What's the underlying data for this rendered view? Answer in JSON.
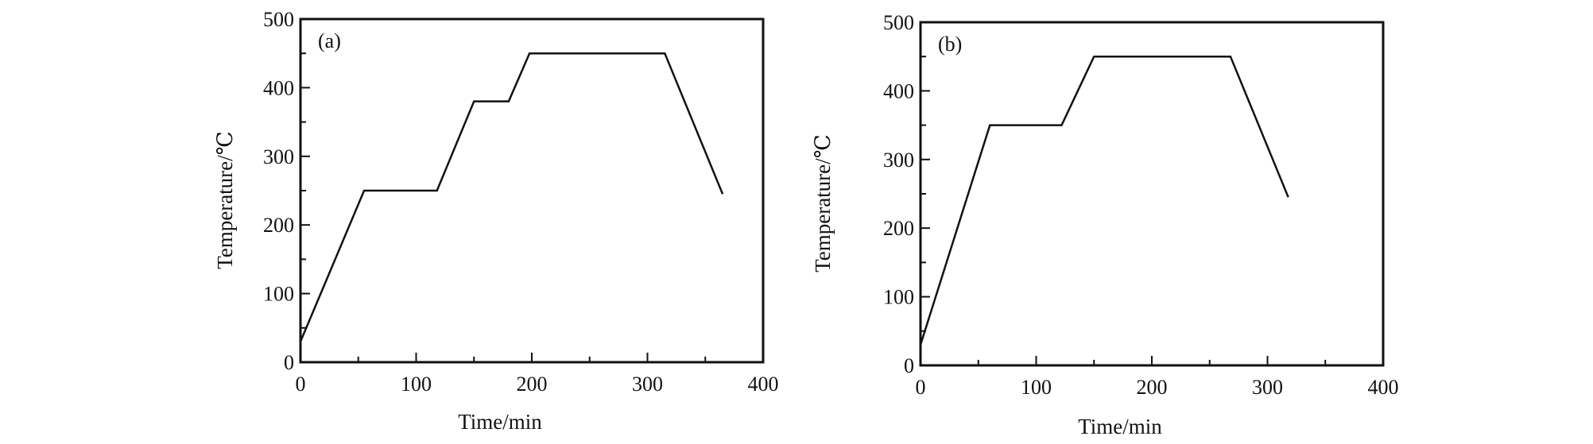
{
  "chart_data": [
    {
      "type": "line",
      "panel_label": "(a)",
      "xlabel": "Time/min",
      "ylabel": "Temperature/℃",
      "xlim": [
        0,
        400
      ],
      "ylim": [
        0,
        500
      ],
      "x_ticks": [
        0,
        100,
        200,
        300,
        400
      ],
      "y_ticks": [
        0,
        100,
        200,
        300,
        400,
        500
      ],
      "grid": false,
      "series": [
        {
          "x": [
            0,
            55,
            118,
            150,
            180,
            198,
            315,
            365
          ],
          "y": [
            30,
            250,
            250,
            380,
            380,
            450,
            450,
            245
          ]
        }
      ]
    },
    {
      "type": "line",
      "panel_label": "(b)",
      "xlabel": "Time/min",
      "ylabel": "Temperature/℃",
      "xlim": [
        0,
        400
      ],
      "ylim": [
        0,
        500
      ],
      "x_ticks": [
        0,
        100,
        200,
        300,
        400
      ],
      "y_ticks": [
        0,
        100,
        200,
        300,
        400,
        500
      ],
      "grid": false,
      "series": [
        {
          "x": [
            0,
            60,
            122,
            150,
            268,
            318
          ],
          "y": [
            30,
            350,
            350,
            450,
            450,
            245
          ]
        }
      ]
    }
  ]
}
